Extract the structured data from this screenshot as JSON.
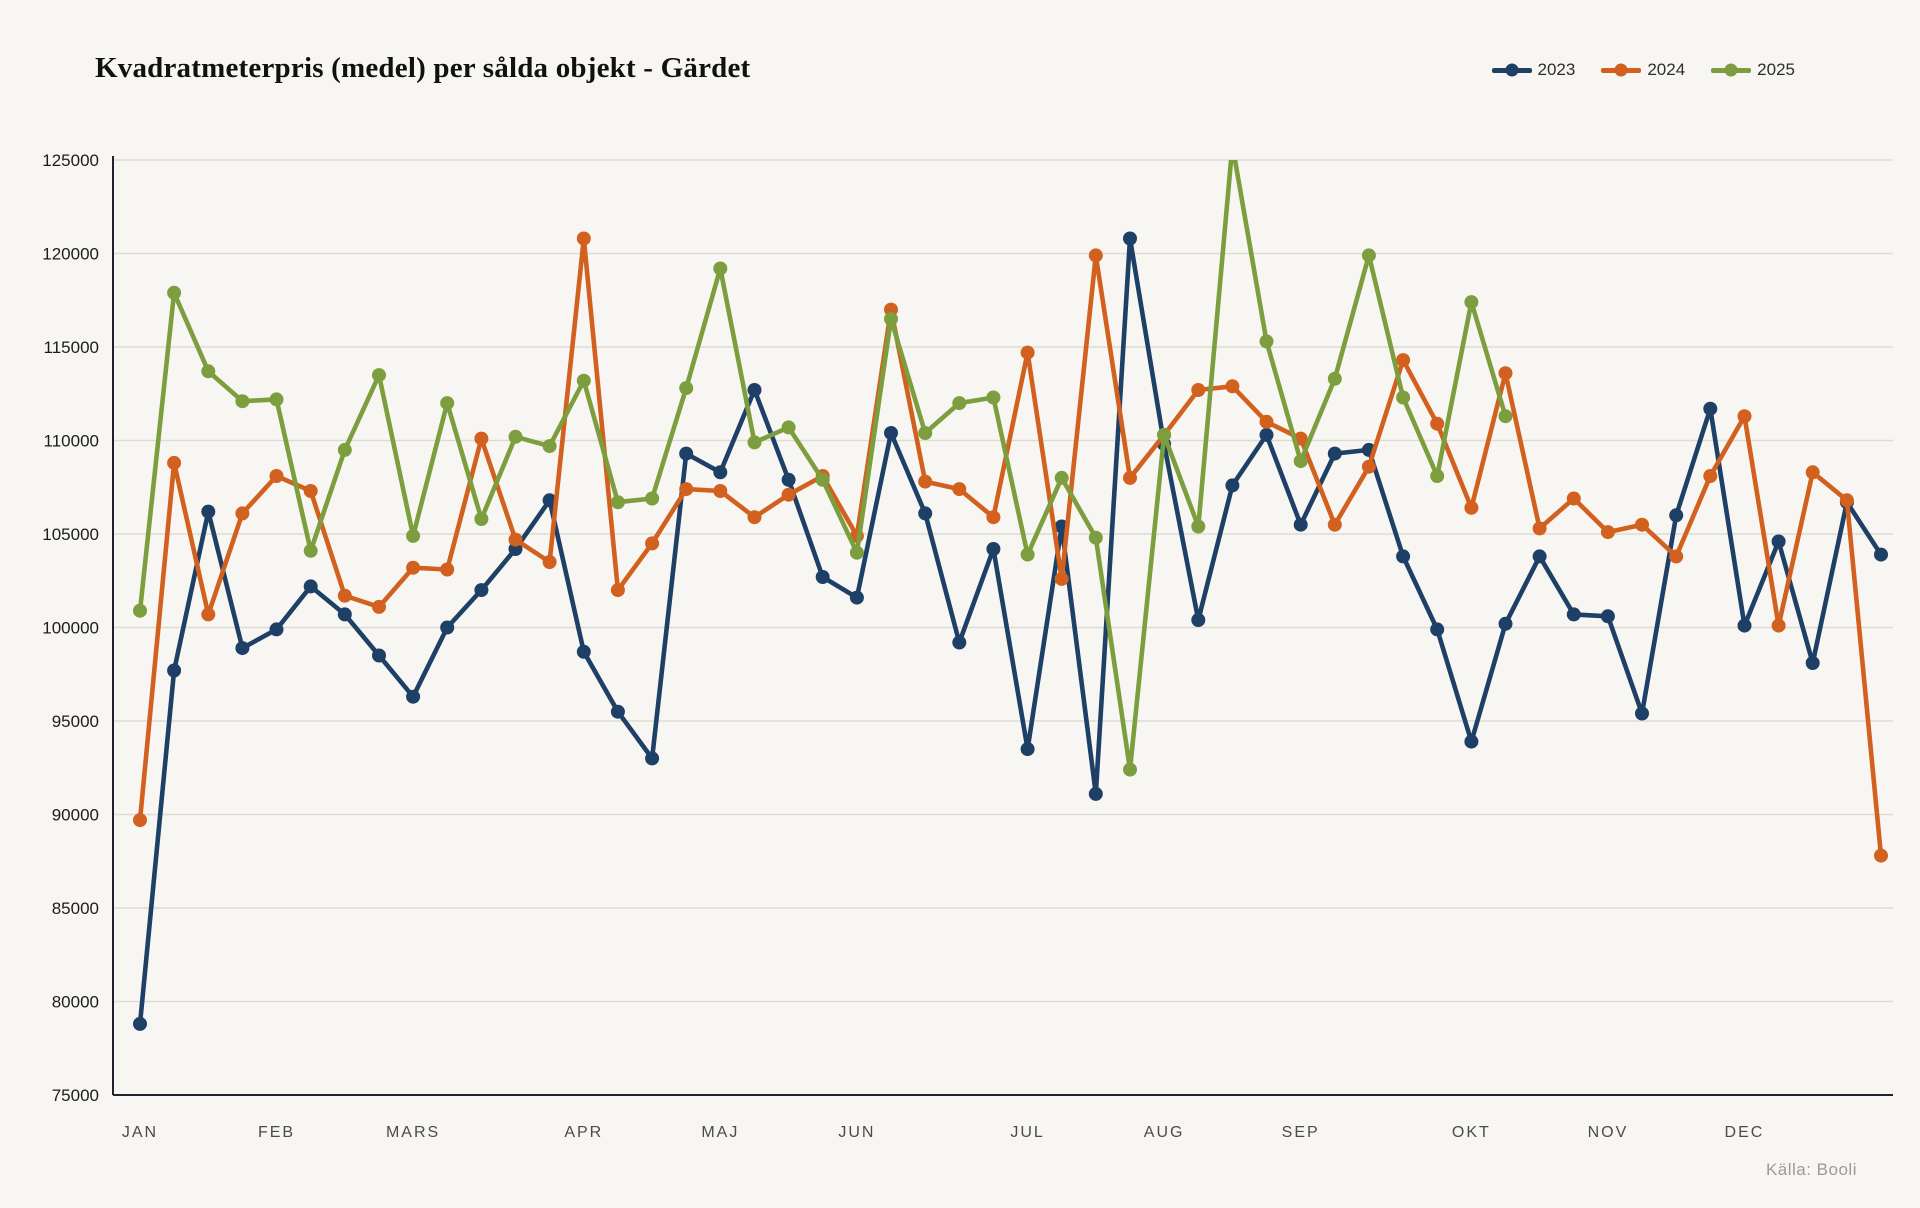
{
  "title": "Kvadratmeterpris (medel) per sålda objekt - Gärdet",
  "source": "Källa: Booli",
  "colors": {
    "background": "#f8f6f2",
    "grid": "#dedbd4",
    "axis": "#20222e",
    "series_2023": "#1e3f66",
    "series_2024": "#d2601e",
    "series_2025": "#7d9e3e"
  },
  "chart_data": {
    "type": "line",
    "title": "Kvadratmeterpris (medel) per sålda objekt - Gärdet",
    "xlabel": "",
    "ylabel": "",
    "ylim": [
      75000,
      125000
    ],
    "ytick_step": 5000,
    "ytick_labels": [
      "75000",
      "80000",
      "85000",
      "90000",
      "95000",
      "100000",
      "105000",
      "110000",
      "115000",
      "120000",
      "125000"
    ],
    "grid": "horizontal",
    "legend_position": "top-right",
    "clip_to_plot": true,
    "months": [
      {
        "label": "JAN",
        "weeks": 4
      },
      {
        "label": "FEB",
        "weeks": 4
      },
      {
        "label": "MARS",
        "weeks": 5
      },
      {
        "label": "APR",
        "weeks": 4
      },
      {
        "label": "MAJ",
        "weeks": 4
      },
      {
        "label": "JUN",
        "weeks": 5
      },
      {
        "label": "JUL",
        "weeks": 4
      },
      {
        "label": "AUG",
        "weeks": 4
      },
      {
        "label": "SEP",
        "weeks": 5
      },
      {
        "label": "OKT",
        "weeks": 4
      },
      {
        "label": "NOV",
        "weeks": 4
      },
      {
        "label": "DEC",
        "weeks": 5
      }
    ],
    "x_unit": "vecka (52 veckor, index 0-51)",
    "series": [
      {
        "name": "2023",
        "color": "#1e3f66",
        "values": [
          78800,
          97700,
          106200,
          98900,
          99900,
          102200,
          100700,
          98500,
          96300,
          100000,
          102000,
          104200,
          106800,
          98700,
          95500,
          93000,
          109300,
          108300,
          112700,
          107900,
          102700,
          101600,
          110400,
          106100,
          99200,
          104200,
          93500,
          105400,
          91100,
          120800,
          109800,
          100400,
          107600,
          110300,
          105500,
          109300,
          109500,
          103800,
          99900,
          93900,
          100200,
          103800,
          100700,
          100600,
          95400,
          106000,
          111700,
          100100,
          104600,
          98100,
          106700,
          103900
        ]
      },
      {
        "name": "2024",
        "color": "#d2601e",
        "values": [
          89700,
          108800,
          100700,
          106100,
          108100,
          107300,
          101700,
          101100,
          103200,
          103100,
          110100,
          104700,
          103500,
          120800,
          102000,
          104500,
          107400,
          107300,
          105900,
          107100,
          108100,
          104900,
          117000,
          107800,
          107400,
          105900,
          114700,
          102600,
          119900,
          108000,
          110300,
          112700,
          112900,
          111000,
          110100,
          105500,
          108600,
          114300,
          110900,
          106400,
          113600,
          105300,
          106900,
          105100,
          105500,
          103800,
          108100,
          111300,
          100100,
          108300,
          106800,
          87800
        ]
      },
      {
        "name": "2025",
        "color": "#7d9e3e",
        "values": [
          100900,
          117900,
          113700,
          112100,
          112200,
          104100,
          109500,
          113500,
          104900,
          112000,
          105800,
          110200,
          109700,
          113200,
          106700,
          106900,
          112800,
          119200,
          109900,
          110700,
          107900,
          104000,
          116500,
          110400,
          112000,
          112300,
          103900,
          108000,
          104800,
          92400,
          110300,
          105400,
          125800,
          115300,
          108900,
          113300,
          119900,
          112300,
          108100,
          117400,
          111300
        ]
      }
    ]
  }
}
